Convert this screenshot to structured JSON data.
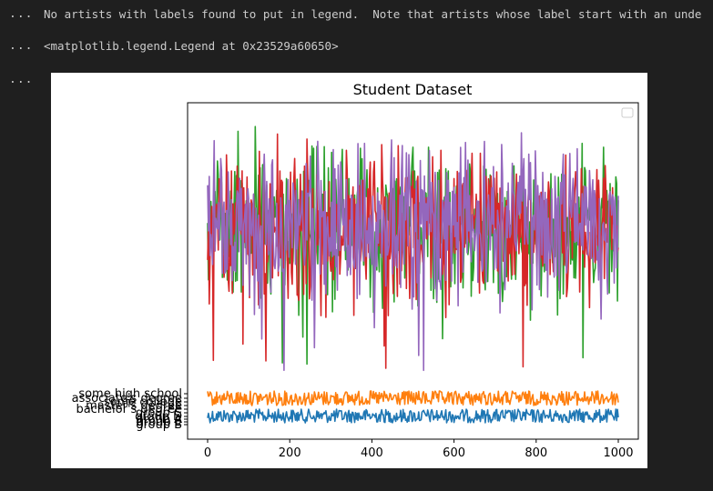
{
  "cells": [
    {
      "gutter": "...",
      "text": "No artists with labels found to put in legend.  Note that artists whose label start with an unde"
    },
    {
      "gutter": "...",
      "text": "<matplotlib.legend.Legend at 0x23529a60650>"
    },
    {
      "gutter": "..."
    }
  ],
  "chart_data": {
    "type": "line",
    "title": "Student Dataset",
    "xlabel": "",
    "ylabel": "",
    "xlim": [
      0,
      1000
    ],
    "x_ticks": [
      0,
      200,
      400,
      600,
      800,
      1000
    ],
    "y_tick_labels": [
      "some high school",
      "associate's degree",
      "some college",
      "master's degree",
      "bachelor's degree",
      "group C",
      "group D",
      "group A",
      "group E",
      "group B"
    ],
    "legend": {
      "placement": "top-right",
      "entries": []
    },
    "series": [
      {
        "color": "#1f77b4",
        "band": "categorical-low",
        "description_level": 0.05
      },
      {
        "color": "#ff7f0e",
        "band": "categorical-high",
        "description_level": 0.12
      },
      {
        "color": "#2ca02c",
        "band": "numeric",
        "description_level": 0.7
      },
      {
        "color": "#d62728",
        "band": "numeric",
        "description_level": 0.72
      },
      {
        "color": "#9467bd",
        "band": "numeric",
        "description_level": 0.7
      }
    ]
  }
}
